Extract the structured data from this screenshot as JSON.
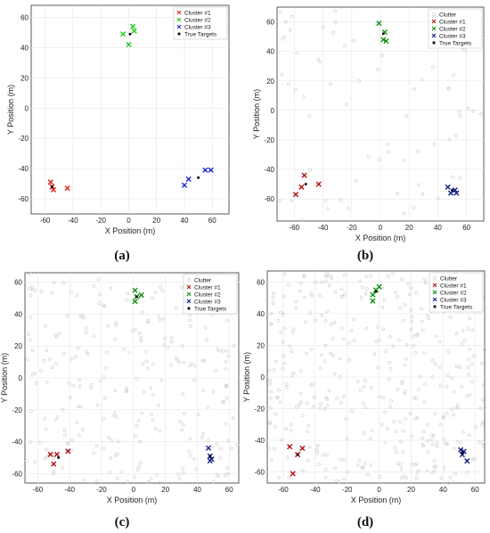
{
  "chart_data": [
    {
      "type": "scatter",
      "caption": "(a)",
      "xlabel": "X Position (m)",
      "ylabel": "Y Position (m)",
      "xlim": [
        -70,
        72
      ],
      "ylim": [
        -70,
        68
      ],
      "xticks": [
        -60,
        -40,
        -20,
        0,
        20,
        40,
        60
      ],
      "yticks": [
        -60,
        -40,
        -20,
        0,
        20,
        40,
        60
      ],
      "grid": true,
      "legend_position": "top-right",
      "legend": [
        {
          "name": "Cluster #1",
          "marker": "x",
          "color": "#e02020"
        },
        {
          "name": "Cluster #2",
          "marker": "x",
          "color": "#20cc20"
        },
        {
          "name": "Cluster #3",
          "marker": "x",
          "color": "#2020e0"
        },
        {
          "name": "True Targets",
          "marker": "square",
          "color": "#000000"
        }
      ],
      "series": [
        {
          "name": "Cluster #1",
          "points": [
            [
              -56,
              -49
            ],
            [
              -55,
              -52
            ],
            [
              -54,
              -54
            ],
            [
              -44,
              -53
            ]
          ]
        },
        {
          "name": "Cluster #2",
          "points": [
            [
              -4,
              49
            ],
            [
              0,
              42
            ],
            [
              3,
              54
            ],
            [
              4,
              51
            ]
          ]
        },
        {
          "name": "Cluster #3",
          "points": [
            [
              40,
              -51
            ],
            [
              43,
              -47
            ],
            [
              55,
              -41
            ],
            [
              59,
              -41
            ]
          ]
        },
        {
          "name": "True Targets",
          "points": [
            [
              -55,
              -52
            ],
            [
              1,
              49
            ],
            [
              50,
              -46
            ]
          ]
        }
      ]
    },
    {
      "type": "scatter",
      "caption": "(b)",
      "xlabel": "X Position (m)",
      "ylabel": "Y Position (m)",
      "xlim": [
        -72,
        72
      ],
      "ylim": [
        -75,
        70
      ],
      "xticks": [
        -60,
        -40,
        -20,
        0,
        20,
        40,
        60
      ],
      "yticks": [
        -60,
        -40,
        -20,
        0,
        20,
        40,
        60
      ],
      "grid": true,
      "legend_position": "top-right",
      "legend": [
        {
          "name": "Clutter",
          "marker": "circle",
          "color": "#c8c8c8"
        },
        {
          "name": "Cluster #1",
          "marker": "x",
          "color": "#b01010"
        },
        {
          "name": "Cluster #2",
          "marker": "x",
          "color": "#109010"
        },
        {
          "name": "Cluster #3",
          "marker": "x",
          "color": "#102080"
        },
        {
          "name": "True Targets",
          "marker": "square",
          "color": "#000000"
        }
      ],
      "clutter_count": 70,
      "series": [
        {
          "name": "Cluster #1",
          "points": [
            [
              -59,
              -57
            ],
            [
              -55,
              -52
            ],
            [
              -53,
              -44
            ],
            [
              -43,
              -50
            ]
          ]
        },
        {
          "name": "Cluster #2",
          "points": [
            [
              -1,
              59
            ],
            [
              3,
              53
            ],
            [
              2,
              48
            ],
            [
              4,
              47
            ]
          ]
        },
        {
          "name": "Cluster #3",
          "points": [
            [
              47,
              -52
            ],
            [
              49,
              -56
            ],
            [
              52,
              -54
            ],
            [
              53,
              -56
            ]
          ]
        },
        {
          "name": "True Targets",
          "points": [
            [
              -52,
              -50
            ],
            [
              2,
              52
            ],
            [
              50,
              -54
            ]
          ]
        }
      ]
    },
    {
      "type": "scatter",
      "caption": "(c)",
      "xlabel": "X Position (m)",
      "ylabel": "Y Position (m)",
      "xlim": [
        -68,
        66
      ],
      "ylim": [
        -66,
        66
      ],
      "xticks": [
        -60,
        -40,
        -20,
        0,
        20,
        40,
        60
      ],
      "yticks": [
        -60,
        -40,
        -20,
        0,
        20,
        40,
        60
      ],
      "grid": true,
      "legend_position": "top-right",
      "legend": [
        {
          "name": "Clutter",
          "marker": "circle",
          "color": "#c8c8c8"
        },
        {
          "name": "Cluster #1",
          "marker": "x",
          "color": "#b01010"
        },
        {
          "name": "Cluster #2",
          "marker": "x",
          "color": "#109010"
        },
        {
          "name": "Cluster #3",
          "marker": "x",
          "color": "#102080"
        },
        {
          "name": "True Targets",
          "marker": "square",
          "color": "#000000"
        }
      ],
      "clutter_count": 260,
      "series": [
        {
          "name": "Cluster #1",
          "points": [
            [
              -52,
              -48
            ],
            [
              -48,
              -48
            ],
            [
              -50,
              -54
            ],
            [
              -41,
              -46
            ]
          ]
        },
        {
          "name": "Cluster #2",
          "points": [
            [
              1,
              55
            ],
            [
              1,
              48
            ],
            [
              5,
              52
            ],
            [
              2,
              51
            ]
          ]
        },
        {
          "name": "Cluster #3",
          "points": [
            [
              47,
              -44
            ],
            [
              48,
              -49
            ],
            [
              49,
              -51
            ],
            [
              48,
              -52
            ]
          ]
        },
        {
          "name": "True Targets",
          "points": [
            [
              -47,
              -50
            ],
            [
              2,
              51
            ],
            [
              48,
              -49
            ]
          ]
        }
      ]
    },
    {
      "type": "scatter",
      "caption": "(d)",
      "xlabel": "X Position (m)",
      "ylabel": "Y Position (m)",
      "xlim": [
        -70,
        66
      ],
      "ylim": [
        -67,
        67
      ],
      "xticks": [
        -60,
        -40,
        -20,
        0,
        20,
        40,
        60
      ],
      "yticks": [
        -60,
        -40,
        -20,
        0,
        20,
        40,
        60
      ],
      "grid": true,
      "legend_position": "top-right",
      "legend": [
        {
          "name": "Clutter",
          "marker": "circle",
          "color": "#c8c8c8"
        },
        {
          "name": "Cluster #1",
          "marker": "x",
          "color": "#b01010"
        },
        {
          "name": "Cluster #2",
          "marker": "x",
          "color": "#109010"
        },
        {
          "name": "Cluster #3",
          "marker": "x",
          "color": "#102080"
        },
        {
          "name": "True Targets",
          "marker": "square",
          "color": "#000000"
        }
      ],
      "clutter_count": 380,
      "series": [
        {
          "name": "Cluster #1",
          "points": [
            [
              -56,
              -44
            ],
            [
              -51,
              -49
            ],
            [
              -48,
              -45
            ],
            [
              -54,
              -61
            ]
          ]
        },
        {
          "name": "Cluster #2",
          "points": [
            [
              -4,
              52
            ],
            [
              -2,
              55
            ],
            [
              0,
              57
            ],
            [
              -4,
              48
            ]
          ]
        },
        {
          "name": "Cluster #3",
          "points": [
            [
              51,
              -46
            ],
            [
              52,
              -49
            ],
            [
              53,
              -47
            ],
            [
              55,
              -53
            ]
          ]
        },
        {
          "name": "True Targets",
          "points": [
            [
              -51,
              -49
            ],
            [
              -2,
              54
            ],
            [
              52,
              -48
            ]
          ]
        }
      ]
    }
  ]
}
